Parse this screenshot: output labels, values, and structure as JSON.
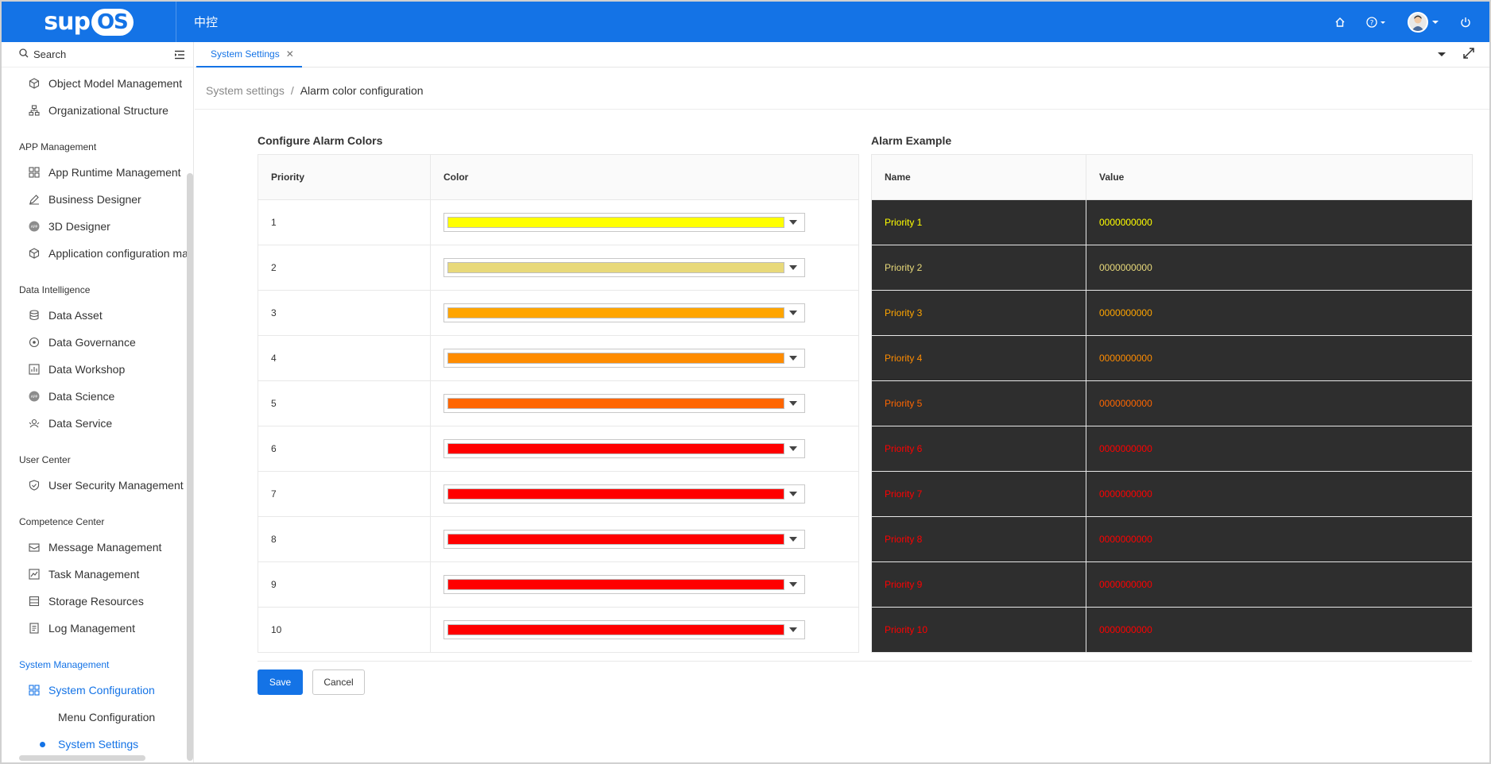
{
  "topbar": {
    "logo_text": "sup",
    "logo_badge": "OS",
    "org_name": "中控",
    "icons": [
      "home-icon",
      "help-icon",
      "avatar",
      "power-icon"
    ]
  },
  "sidebar": {
    "search_label": "Search",
    "items_top": [
      {
        "label": "Object Model Management",
        "icon": "cube-icon"
      },
      {
        "label": "Organizational Structure",
        "icon": "org-chart-icon"
      }
    ],
    "groups": [
      {
        "label": "APP Management",
        "items": [
          {
            "label": "App Runtime Management",
            "icon": "grid-icon"
          },
          {
            "label": "Business Designer",
            "icon": "pen-icon"
          },
          {
            "label": "3D Designer",
            "icon": "app-badge-icon"
          },
          {
            "label": "Application configuration ma",
            "icon": "cube-icon"
          }
        ]
      },
      {
        "label": "Data Intelligence",
        "items": [
          {
            "label": "Data Asset",
            "icon": "database-icon"
          },
          {
            "label": "Data Governance",
            "icon": "governance-icon"
          },
          {
            "label": "Data Workshop",
            "icon": "workshop-icon"
          },
          {
            "label": "Data Science",
            "icon": "app-badge-icon"
          },
          {
            "label": "Data Service",
            "icon": "service-icon"
          }
        ]
      },
      {
        "label": "User Center",
        "items": [
          {
            "label": "User Security Management",
            "icon": "shield-icon"
          }
        ]
      },
      {
        "label": "Competence Center",
        "items": [
          {
            "label": "Message Management",
            "icon": "message-icon"
          },
          {
            "label": "Task Management",
            "icon": "task-icon"
          },
          {
            "label": "Storage Resources",
            "icon": "storage-icon"
          },
          {
            "label": "Log Management",
            "icon": "log-icon"
          }
        ]
      },
      {
        "label": "System Management",
        "items": [
          {
            "label": "System Configuration",
            "icon": "grid-icon"
          }
        ]
      }
    ],
    "sub_items": [
      {
        "label": "Menu Configuration"
      },
      {
        "label": "System Settings"
      }
    ]
  },
  "tabs": [
    {
      "label": "System Settings",
      "active": true
    }
  ],
  "breadcrumb": {
    "parent": "System settings",
    "separator": "/",
    "current": "Alarm color configuration"
  },
  "config": {
    "title": "Configure Alarm Colors",
    "col_priority": "Priority",
    "col_color": "Color",
    "rows": [
      {
        "priority": "1",
        "color": "#ffff00"
      },
      {
        "priority": "2",
        "color": "#e8d97a"
      },
      {
        "priority": "3",
        "color": "#ffa500"
      },
      {
        "priority": "4",
        "color": "#ff8c00"
      },
      {
        "priority": "5",
        "color": "#ff6600"
      },
      {
        "priority": "6",
        "color": "#ff0000"
      },
      {
        "priority": "7",
        "color": "#ff0000"
      },
      {
        "priority": "8",
        "color": "#ff0000"
      },
      {
        "priority": "9",
        "color": "#ff0000"
      },
      {
        "priority": "10",
        "color": "#ff0000"
      }
    ]
  },
  "example": {
    "title": "Alarm Example",
    "col_name": "Name",
    "col_value": "Value",
    "rows": [
      {
        "name": "Priority 1",
        "value": "0000000000"
      },
      {
        "name": "Priority 2",
        "value": "0000000000"
      },
      {
        "name": "Priority 3",
        "value": "0000000000"
      },
      {
        "name": "Priority 4",
        "value": "0000000000"
      },
      {
        "name": "Priority 5",
        "value": "0000000000"
      },
      {
        "name": "Priority 6",
        "value": "0000000000"
      },
      {
        "name": "Priority 7",
        "value": "0000000000"
      },
      {
        "name": "Priority 8",
        "value": "0000000000"
      },
      {
        "name": "Priority 9",
        "value": "0000000000"
      },
      {
        "name": "Priority 10",
        "value": "0000000000"
      }
    ]
  },
  "actions": {
    "save_label": "Save",
    "cancel_label": "Cancel"
  },
  "colors": {
    "brand": "#1473e6",
    "example_bg": "#2e2e2e"
  }
}
